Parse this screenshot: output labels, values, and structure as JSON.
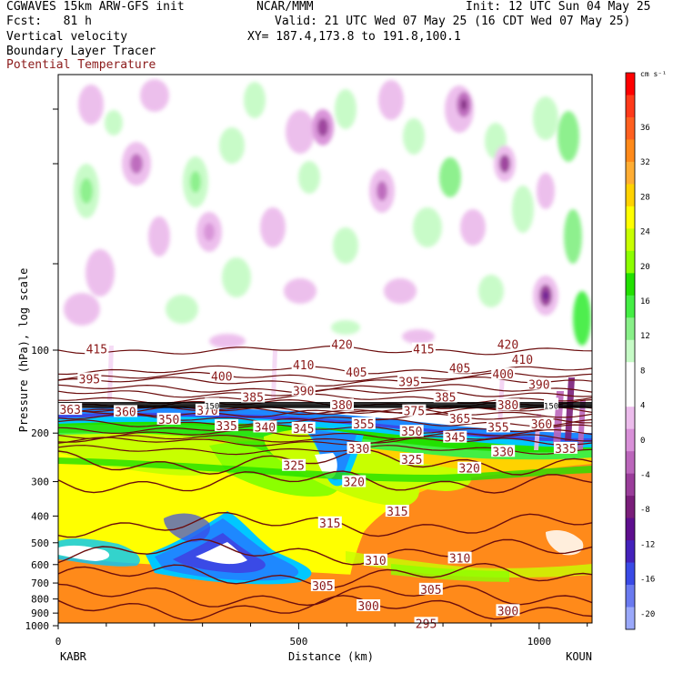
{
  "header": {
    "line1_left": "CGWAVES 15km ARW-GFS init",
    "line1_center": "NCAR/MMM",
    "line1_right": "Init: 12 UTC Sun 04 May 25",
    "line2_left": "Fcst:   81 h",
    "line2_right": "Valid: 21 UTC Wed 07 May 25 (16 CDT Wed 07 May 25)",
    "line3_left": "Vertical velocity",
    "line3_right": "XY= 187.4,173.8 to 191.8,100.1",
    "line4_left": "Boundary Layer Tracer",
    "line5_left": "Potential Temperature"
  },
  "colors": {
    "theta_contour": "#6b0d0d",
    "theta_label": "#8b1a1a",
    "background": "#ffffff"
  },
  "chart_data": {
    "type": "heatmap",
    "xlabel": "Distance (km)",
    "ylabel": "Pressure (hPa), log scale",
    "xlim": [
      0,
      1110
    ],
    "x_ticks": [
      "0",
      "500",
      "1000"
    ],
    "y_ticks": [
      "100",
      "200",
      "300",
      "400",
      "500",
      "600",
      "700",
      "800",
      "900",
      "1000"
    ],
    "left_station": "KABR",
    "right_station": "KOUN",
    "colorbar": {
      "unit": "cm s⁻¹",
      "tick_labels": [
        "36",
        "32",
        "28",
        "24",
        "20",
        "16",
        "12",
        "8",
        "4",
        "0",
        "-4",
        "-8",
        "-12",
        "-16",
        "-20"
      ],
      "colors": [
        "#ff0000",
        "#ff3a1a",
        "#ff6020",
        "#ff8a1a",
        "#ffad33",
        "#ffd200",
        "#ffff00",
        "#c8ff00",
        "#8cff00",
        "#22e000",
        "#44ee44",
        "#88f088",
        "#c6fbc6",
        "#ffffff",
        "#ffffff",
        "#ecbcec",
        "#d890d8",
        "#bb66bb",
        "#9a3d9a",
        "#7a1e7a",
        "#5e0f8e",
        "#4422bb",
        "#3a4ae6",
        "#6a7af0",
        "#9aa8fa"
      ]
    },
    "theta_contours": [
      {
        "value": 415,
        "p": 100
      },
      {
        "value": 410,
        "p": 118
      },
      {
        "value": 405,
        "p": 125
      },
      {
        "value": 400,
        "p": 130
      },
      {
        "value": 395,
        "p": 138
      },
      {
        "value": 390,
        "p": 143
      },
      {
        "value": 385,
        "p": 150
      },
      {
        "value": 380,
        "p": 157
      },
      {
        "value": 375,
        "p": 166
      },
      {
        "value": 370,
        "p": 165
      },
      {
        "value": 365,
        "p": 177
      },
      {
        "value": 360,
        "p": 169
      },
      {
        "value": 355,
        "p": 183
      },
      {
        "value": 350,
        "p": 193
      },
      {
        "value": 345,
        "p": 202
      },
      {
        "value": 340,
        "p": 210
      },
      {
        "value": 335,
        "p": 215
      },
      {
        "value": 330,
        "p": 230
      },
      {
        "value": 325,
        "p": 255
      },
      {
        "value": 320,
        "p": 300
      },
      {
        "value": 315,
        "p": 430
      },
      {
        "value": 310,
        "p": 540
      },
      {
        "value": 305,
        "p": 660
      },
      {
        "value": 300,
        "p": 780
      },
      {
        "value": 295,
        "p": 860
      }
    ],
    "theta_labels": [
      {
        "text": "415",
        "x": 80,
        "p": 99
      },
      {
        "text": "420",
        "x": 590,
        "p": 95
      },
      {
        "text": "420",
        "x": 935,
        "p": 95
      },
      {
        "text": "415",
        "x": 760,
        "p": 99
      },
      {
        "text": "410",
        "x": 510,
        "p": 113
      },
      {
        "text": "410",
        "x": 965,
        "p": 108
      },
      {
        "text": "405",
        "x": 620,
        "p": 120
      },
      {
        "text": "405",
        "x": 835,
        "p": 116
      },
      {
        "text": "400",
        "x": 340,
        "p": 124
      },
      {
        "text": "400",
        "x": 925,
        "p": 122
      },
      {
        "text": "395",
        "x": 65,
        "p": 127
      },
      {
        "text": "395",
        "x": 730,
        "p": 130
      },
      {
        "text": "390",
        "x": 510,
        "p": 140
      },
      {
        "text": "390",
        "x": 1000,
        "p": 133
      },
      {
        "text": "385",
        "x": 405,
        "p": 148
      },
      {
        "text": "385",
        "x": 805,
        "p": 148
      },
      {
        "text": "380",
        "x": 590,
        "p": 158
      },
      {
        "text": "380",
        "x": 935,
        "p": 158
      },
      {
        "text": "375",
        "x": 740,
        "p": 166
      },
      {
        "text": "370",
        "x": 310,
        "p": 165
      },
      {
        "text": "365",
        "x": 835,
        "p": 177
      },
      {
        "text": "363",
        "x": 25,
        "p": 164
      },
      {
        "text": "360",
        "x": 140,
        "p": 167
      },
      {
        "text": "360",
        "x": 1005,
        "p": 185
      },
      {
        "text": "355",
        "x": 635,
        "p": 185
      },
      {
        "text": "355",
        "x": 915,
        "p": 190
      },
      {
        "text": "350",
        "x": 230,
        "p": 178
      },
      {
        "text": "350",
        "x": 735,
        "p": 197
      },
      {
        "text": "345",
        "x": 510,
        "p": 192
      },
      {
        "text": "345",
        "x": 825,
        "p": 207
      },
      {
        "text": "340",
        "x": 430,
        "p": 190
      },
      {
        "text": "335",
        "x": 350,
        "p": 188
      },
      {
        "text": "335",
        "x": 1055,
        "p": 227
      },
      {
        "text": "330",
        "x": 625,
        "p": 227
      },
      {
        "text": "330",
        "x": 925,
        "p": 233
      },
      {
        "text": "325",
        "x": 490,
        "p": 262
      },
      {
        "text": "325",
        "x": 735,
        "p": 249
      },
      {
        "text": "320",
        "x": 615,
        "p": 300
      },
      {
        "text": "320",
        "x": 855,
        "p": 268
      },
      {
        "text": "315",
        "x": 565,
        "p": 423
      },
      {
        "text": "315",
        "x": 705,
        "p": 384
      },
      {
        "text": "310",
        "x": 660,
        "p": 578
      },
      {
        "text": "310",
        "x": 835,
        "p": 568
      },
      {
        "text": "305",
        "x": 550,
        "p": 716
      },
      {
        "text": "305",
        "x": 775,
        "p": 737
      },
      {
        "text": "300",
        "x": 645,
        "p": 846
      },
      {
        "text": "300",
        "x": 935,
        "p": 881
      },
      {
        "text": "295",
        "x": 765,
        "p": 980
      },
      {
        "text": "150",
        "x": 320,
        "p": 157
      },
      {
        "text": "150",
        "x": 1025,
        "p": 157
      }
    ]
  }
}
